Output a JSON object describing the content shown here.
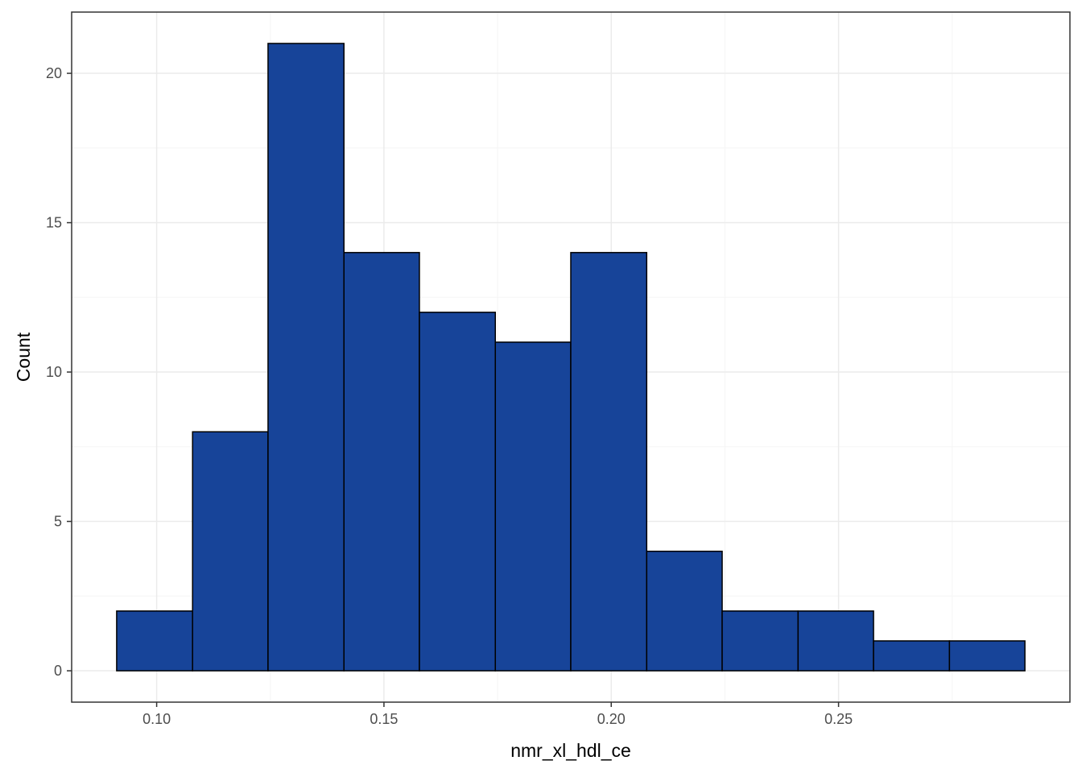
{
  "chart_data": {
    "type": "bar",
    "subtype": "histogram",
    "xlabel": "nmr_xl_hdl_ce",
    "ylabel": "Count",
    "bin_edges": [
      0.0912,
      0.1079,
      0.1245,
      0.1412,
      0.1578,
      0.1745,
      0.1911,
      0.2078,
      0.2244,
      0.2411,
      0.2577,
      0.2744,
      0.291
    ],
    "values": [
      2,
      8,
      21,
      14,
      12,
      11,
      14,
      4,
      2,
      2,
      1,
      1
    ],
    "xlim": [
      0.0813,
      0.3009
    ],
    "ylim": [
      -1.05,
      22.05
    ],
    "x_ticks": [
      0.1,
      0.15,
      0.2,
      0.25
    ],
    "x_tick_labels": [
      "0.10",
      "0.15",
      "0.20",
      "0.25"
    ],
    "x_minor_ticks": [
      0.125,
      0.175,
      0.225,
      0.275
    ],
    "y_ticks": [
      0,
      5,
      10,
      15,
      20
    ],
    "y_tick_labels": [
      "0",
      "5",
      "10",
      "15",
      "20"
    ],
    "y_minor_ticks": [
      2.5,
      7.5,
      12.5,
      17.5
    ],
    "grid": true,
    "colors": {
      "bar_fill": "#174499",
      "bar_stroke": "#000000",
      "grid_major": "#ebebeb",
      "grid_minor": "#f5f5f5",
      "panel_border": "#333333"
    }
  }
}
